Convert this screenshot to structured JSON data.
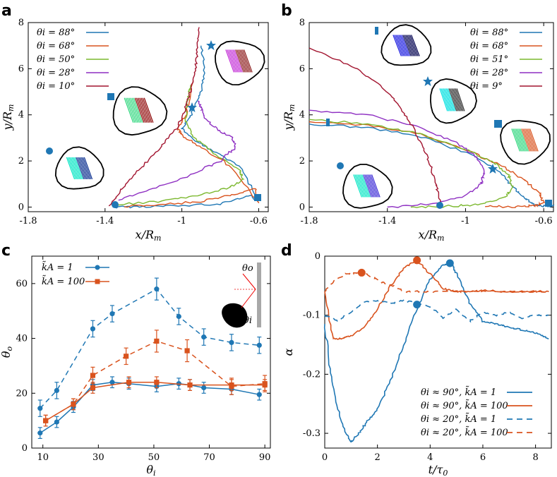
{
  "colors": {
    "blue": "#1f77b4",
    "orange": "#d9531e",
    "green": "#7cb82f",
    "purple": "#8e2fc2",
    "darkred": "#a2142f",
    "gray": "#a8a8a8"
  },
  "chart_data": [
    {
      "panel": "a",
      "type": "line",
      "xlabel": "x/R_m",
      "ylabel": "y/R_m",
      "xlim": [
        -1.8,
        -0.55
      ],
      "ylim": [
        -0.2,
        8
      ],
      "xticks": [
        "-1.8",
        "-1.4",
        "-1",
        "-0.6"
      ],
      "yticks": [
        "0",
        "2",
        "4",
        "6",
        "8"
      ],
      "legend": [
        "θi = 88°",
        "θi = 68°",
        "θi = 50°",
        "θi = 28°",
        "θi = 10°"
      ],
      "series": [
        {
          "name": "θi = 88°",
          "color": "blue",
          "x": [
            -1.36,
            -1.2,
            -1.0,
            -0.8,
            -0.65,
            -0.6,
            -0.7,
            -0.85,
            -0.95,
            -1.0,
            -0.95,
            -0.9,
            -0.88,
            -0.9
          ],
          "y": [
            0.0,
            0.02,
            0.05,
            0.15,
            0.5,
            0.3,
            1.8,
            2.5,
            3.0,
            3.4,
            4.0,
            5.0,
            6.0,
            7.0
          ]
        },
        {
          "name": "θi = 68°",
          "color": "orange",
          "x": [
            -1.3,
            -1.1,
            -0.9,
            -0.75,
            -0.62,
            -0.6,
            -0.75,
            -0.9,
            -1.0,
            -1.02,
            -0.98,
            -0.94
          ],
          "y": [
            0.02,
            0.1,
            0.25,
            0.5,
            0.8,
            0.2,
            1.8,
            2.6,
            3.1,
            3.4,
            4.0,
            5.5
          ]
        },
        {
          "name": "θi = 50°",
          "color": "green",
          "x": [
            -1.35,
            -1.1,
            -0.9,
            -0.75,
            -0.68,
            -0.7,
            -0.85,
            -0.95,
            -0.98,
            -0.97,
            -0.95
          ],
          "y": [
            0.1,
            0.25,
            0.55,
            0.85,
            1.2,
            1.6,
            2.4,
            3.1,
            3.8,
            4.8,
            5.3
          ]
        },
        {
          "name": "θi = 28°",
          "color": "purple",
          "x": [
            -1.33,
            -1.15,
            -0.95,
            -0.8,
            -0.72,
            -0.74,
            -0.82,
            -0.88,
            -0.9,
            -0.91
          ],
          "y": [
            0.3,
            0.8,
            1.4,
            2.0,
            2.6,
            3.0,
            3.4,
            3.9,
            4.3,
            4.6
          ]
        },
        {
          "name": "θi = 10°",
          "color": "darkred",
          "x": [
            -1.38,
            -1.3,
            -1.2,
            -1.1,
            -1.02,
            -0.98,
            -0.95,
            -0.93,
            -0.92,
            -0.91
          ],
          "y": [
            0.05,
            0.9,
            1.8,
            2.7,
            3.5,
            4.3,
            5.2,
            6.0,
            6.8,
            7.8
          ]
        }
      ]
    },
    {
      "panel": "b",
      "type": "line",
      "xlabel": "x/R_m",
      "ylabel": "y/R_m",
      "xlim": [
        -1.8,
        -0.55
      ],
      "ylim": [
        -0.2,
        8
      ],
      "xticks": [
        "-1.8",
        "-1.4",
        "-1",
        "-0.6"
      ],
      "yticks": [
        "0",
        "2",
        "4",
        "6",
        "8"
      ],
      "legend": [
        "θi = 88°",
        "θi = 68°",
        "θi = 51°",
        "θi = 28°",
        "θi = 9°"
      ],
      "series": [
        {
          "name": "θi = 88°",
          "color": "blue",
          "x": [
            -1.8,
            -1.5,
            -1.2,
            -0.95,
            -0.82,
            -0.75,
            -0.7,
            -0.65,
            -0.6,
            -0.55
          ],
          "y": [
            3.6,
            3.45,
            3.0,
            2.2,
            1.5,
            0.8,
            0.4,
            0.1,
            0.05,
            0.05
          ]
        },
        {
          "name": "θi = 68°",
          "color": "orange",
          "x": [
            -1.8,
            -1.5,
            -1.2,
            -0.95,
            -0.8,
            -0.7,
            -0.62,
            -0.6,
            -0.65,
            -0.75,
            -0.9
          ],
          "y": [
            3.7,
            3.55,
            3.1,
            2.3,
            1.7,
            1.2,
            0.6,
            0.2,
            0.05,
            0.02,
            0.02
          ]
        },
        {
          "name": "θi = 51°",
          "color": "green",
          "x": [
            -1.8,
            -1.5,
            -1.25,
            -1.0,
            -0.85,
            -0.78,
            -0.76,
            -0.8,
            -0.95,
            -1.1,
            -1.28
          ],
          "y": [
            3.8,
            3.6,
            3.2,
            2.5,
            1.9,
            1.4,
            0.8,
            0.4,
            0.1,
            0.03,
            0.0
          ]
        },
        {
          "name": "θi = 28°",
          "color": "purple",
          "x": [
            -1.8,
            -1.5,
            -1.25,
            -1.05,
            -0.95,
            -0.9,
            -0.92,
            -1.0,
            -1.15,
            -1.4
          ],
          "y": [
            4.2,
            4.0,
            3.5,
            2.8,
            2.2,
            1.6,
            1.0,
            0.5,
            0.15,
            0.0
          ]
        },
        {
          "name": "θi = 9°",
          "color": "darkred",
          "x": [
            -1.8,
            -1.6,
            -1.45,
            -1.35,
            -1.28,
            -1.22,
            -1.18,
            -1.15,
            -1.12
          ],
          "y": [
            6.9,
            6.2,
            5.4,
            4.5,
            3.6,
            2.7,
            1.8,
            0.9,
            0.0
          ]
        }
      ]
    },
    {
      "panel": "c",
      "type": "line",
      "xlabel": "θi",
      "ylabel": "θo",
      "xlim": [
        6,
        92
      ],
      "ylim": [
        0,
        70
      ],
      "xticks": [
        "10",
        "30",
        "50",
        "70",
        "90"
      ],
      "yticks": [
        "0",
        "20",
        "40",
        "60"
      ],
      "legend": [
        "k̃A = 1",
        "k̃A = 100"
      ],
      "series": [
        {
          "name": "k̃A = 1 solid",
          "color": "blue",
          "marker": "circle",
          "dash": false,
          "x": [
            9,
            15,
            21,
            28,
            35,
            41,
            51,
            59,
            63,
            68,
            78,
            88
          ],
          "y": [
            5.5,
            9.5,
            15,
            23,
            24,
            23.5,
            22.5,
            23.5,
            23,
            22,
            21.5,
            19.5
          ],
          "err": [
            2,
            2,
            2,
            2,
            2,
            2,
            2,
            2,
            2,
            2,
            2,
            2
          ]
        },
        {
          "name": "k̃A = 1 dashed",
          "color": "blue",
          "marker": "circle",
          "dash": true,
          "x": [
            9,
            15,
            28,
            35,
            51,
            59,
            68,
            78,
            88
          ],
          "y": [
            14.5,
            21,
            43.5,
            49,
            58,
            48,
            40.5,
            38.5,
            37.5
          ],
          "err": [
            3,
            3,
            3,
            3,
            4,
            3,
            3,
            3,
            3
          ]
        },
        {
          "name": "k̃A = 100 solid",
          "color": "orange",
          "marker": "square",
          "dash": false,
          "x": [
            11,
            21,
            28,
            41,
            51,
            63,
            78,
            90
          ],
          "y": [
            10,
            16,
            22,
            24,
            24,
            23,
            23,
            23
          ],
          "err": [
            2,
            2,
            2,
            2,
            2,
            2,
            2,
            2
          ]
        },
        {
          "name": "k̃A = 100 dashed",
          "color": "orange",
          "marker": "square",
          "dash": true,
          "x": [
            11,
            21,
            28,
            40,
            51,
            62,
            78,
            90
          ],
          "y": [
            10,
            16,
            26.5,
            33.5,
            39,
            35.5,
            22.5,
            23.5
          ],
          "err": [
            2,
            2,
            3,
            3,
            4,
            4,
            3,
            3
          ]
        }
      ],
      "inset_labels": [
        "θo",
        "θi"
      ]
    },
    {
      "panel": "d",
      "type": "line",
      "xlabel": "t/τ0",
      "ylabel": "α",
      "xlim": [
        0,
        8.6
      ],
      "ylim": [
        -0.325,
        0
      ],
      "xticks": [
        "0",
        "2",
        "4",
        "6",
        "8"
      ],
      "yticks": [
        "0",
        "-0.1",
        "-0.2",
        "-0.3"
      ],
      "legend": [
        "θi ≈ 90°,  k̃A = 1",
        "θi ≈ 90°,  k̃A = 100",
        "θi ≈ 20°,  k̃A = 1",
        "θi ≈ 20°,  k̃A = 100"
      ],
      "series": [
        {
          "name": "θi ≈ 90°, k̃A = 1",
          "color": "blue",
          "dash": false,
          "x": [
            0,
            0.2,
            0.5,
            0.8,
            1.0,
            1.3,
            1.6,
            2.0,
            2.5,
            3.0,
            3.5,
            4.0,
            4.5,
            4.8,
            5.0,
            5.5,
            6.0,
            6.5,
            7.0,
            7.5,
            8.0,
            8.5
          ],
          "y": [
            -0.115,
            -0.19,
            -0.26,
            -0.3,
            -0.315,
            -0.3,
            -0.28,
            -0.26,
            -0.21,
            -0.15,
            -0.09,
            -0.04,
            -0.015,
            -0.012,
            -0.03,
            -0.08,
            -0.11,
            -0.115,
            -0.12,
            -0.125,
            -0.13,
            -0.14
          ]
        },
        {
          "name": "θi ≈ 90°, k̃A = 100",
          "color": "orange",
          "dash": false,
          "x": [
            0,
            0.3,
            0.6,
            1.0,
            1.5,
            2.0,
            2.5,
            3.0,
            3.5,
            4.0,
            4.5,
            5.0,
            5.5,
            6.0,
            7.0,
            8.0,
            8.5
          ],
          "y": [
            -0.06,
            -0.14,
            -0.14,
            -0.135,
            -0.12,
            -0.09,
            -0.05,
            -0.02,
            -0.007,
            -0.03,
            -0.055,
            -0.06,
            -0.06,
            -0.058,
            -0.06,
            -0.06,
            -0.06
          ]
        },
        {
          "name": "θi ≈ 20°, k̃A = 1",
          "color": "blue",
          "dash": true,
          "x": [
            0,
            0.5,
            1.0,
            1.5,
            2.0,
            2.5,
            3.0,
            3.5,
            4.0,
            4.5,
            5.0,
            5.5,
            6.0,
            6.5,
            7.0,
            7.5,
            8.0,
            8.5
          ],
          "y": [
            -0.1,
            -0.11,
            -0.095,
            -0.078,
            -0.075,
            -0.08,
            -0.075,
            -0.08,
            -0.085,
            -0.105,
            -0.09,
            -0.11,
            -0.095,
            -0.1,
            -0.095,
            -0.105,
            -0.1,
            -0.1
          ]
        },
        {
          "name": "θi ≈ 20°, k̃A = 100",
          "color": "orange",
          "dash": true,
          "x": [
            0,
            0.4,
            0.8,
            1.2,
            1.4,
            1.8,
            2.2,
            2.6,
            3.0,
            3.5,
            4.0,
            5.0,
            6.0,
            7.0,
            8.0,
            8.5
          ],
          "y": [
            -0.06,
            -0.04,
            -0.03,
            -0.028,
            -0.028,
            -0.035,
            -0.045,
            -0.05,
            -0.06,
            -0.06,
            -0.06,
            -0.06,
            -0.06,
            -0.06,
            -0.06,
            -0.06
          ]
        }
      ],
      "markers": [
        {
          "x": 1.4,
          "y": -0.028,
          "color": "orange"
        },
        {
          "x": 3.5,
          "y": -0.007,
          "color": "orange"
        },
        {
          "x": 3.5,
          "y": -0.082,
          "color": "blue"
        },
        {
          "x": 4.75,
          "y": -0.012,
          "color": "blue"
        }
      ]
    }
  ]
}
